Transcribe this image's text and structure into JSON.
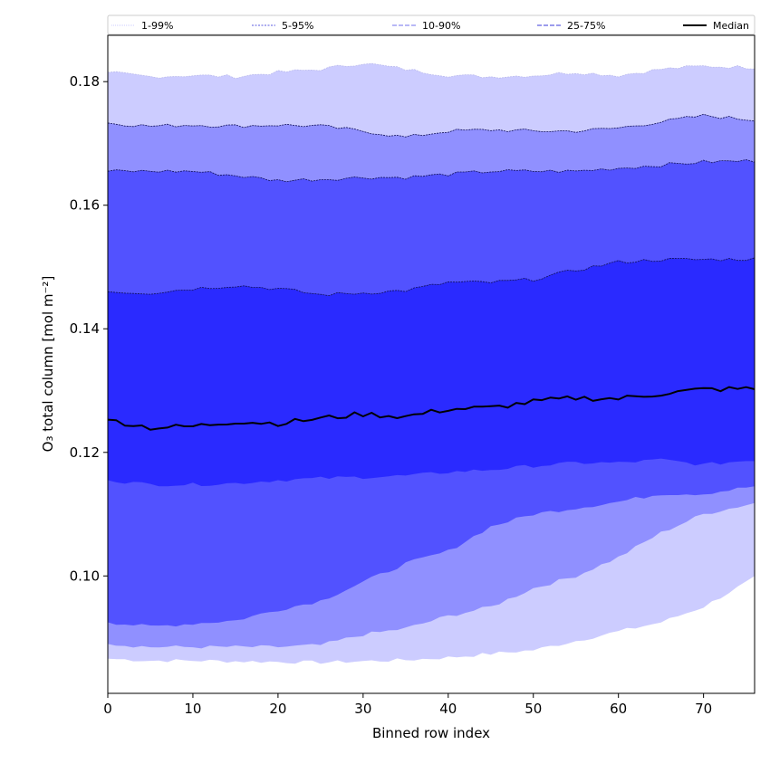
{
  "chart_data": {
    "type": "area",
    "title": "",
    "xlabel": "Binned row index",
    "ylabel": "O₃ total column [mol m⁻²]",
    "xlim": [
      0,
      76
    ],
    "ylim": [
      0.081,
      0.1875
    ],
    "xticks": [
      0,
      10,
      20,
      30,
      40,
      50,
      60,
      70
    ],
    "yticks": [
      0.1,
      0.12,
      0.14,
      0.16,
      0.18
    ],
    "ytick_labels": [
      "0.10",
      "0.12",
      "0.14",
      "0.16",
      "0.18"
    ],
    "grid": false,
    "legend_position": "top (above plot)",
    "x": [
      0,
      5,
      10,
      15,
      20,
      25,
      30,
      35,
      40,
      45,
      50,
      55,
      60,
      65,
      70,
      76
    ],
    "bands": [
      {
        "name": "1-99%",
        "fill": "#ccccff",
        "line_color": "#ccccff",
        "dash": "1 1",
        "lower": [
          0.0866,
          0.0863,
          0.0863,
          0.0862,
          0.0861,
          0.086,
          0.0862,
          0.0864,
          0.0868,
          0.0874,
          0.088,
          0.0895,
          0.091,
          0.0925,
          0.095,
          0.0997
        ],
        "upper": [
          0.1815,
          0.1808,
          0.181,
          0.1808,
          0.1815,
          0.182,
          0.183,
          0.182,
          0.181,
          0.1808,
          0.181,
          0.1815,
          0.181,
          0.182,
          0.1825,
          0.1823
        ]
      },
      {
        "name": "5-95%",
        "fill": "#9090ff",
        "line_color": "#5a5ae0",
        "dash": "2 1.5",
        "lower": [
          0.089,
          0.0885,
          0.0885,
          0.0885,
          0.0885,
          0.0888,
          0.0905,
          0.0915,
          0.0935,
          0.095,
          0.098,
          0.1,
          0.103,
          0.107,
          0.11,
          0.1118
        ],
        "upper": [
          0.1733,
          0.1728,
          0.173,
          0.1728,
          0.173,
          0.1728,
          0.172,
          0.171,
          0.172,
          0.1722,
          0.172,
          0.172,
          0.1725,
          0.1735,
          0.1745,
          0.1738
        ]
      },
      {
        "name": "10-90%",
        "fill": "#5252ff",
        "line_color": "#7070ee",
        "dash": "5 2",
        "lower": [
          0.0925,
          0.0918,
          0.0923,
          0.0928,
          0.0945,
          0.096,
          0.099,
          0.102,
          0.104,
          0.108,
          0.11,
          0.111,
          0.112,
          0.1133,
          0.1133,
          0.1145
        ],
        "upper": [
          0.1655,
          0.1655,
          0.1655,
          0.1648,
          0.164,
          0.1642,
          0.1645,
          0.1645,
          0.165,
          0.1655,
          0.1655,
          0.1655,
          0.166,
          0.1665,
          0.167,
          0.1672
        ]
      },
      {
        "name": "25-75%",
        "fill": "#2a2aff",
        "line_color": "#3a3ad8",
        "dash": "5 2",
        "lower": [
          0.1155,
          0.1148,
          0.1148,
          0.115,
          0.1155,
          0.1158,
          0.116,
          0.1162,
          0.1168,
          0.1172,
          0.1178,
          0.1183,
          0.1183,
          0.1188,
          0.118,
          0.1188
        ],
        "upper": [
          0.146,
          0.1458,
          0.1465,
          0.147,
          0.1465,
          0.1455,
          0.1458,
          0.1462,
          0.1475,
          0.1475,
          0.148,
          0.1495,
          0.1508,
          0.1512,
          0.1512,
          0.1513
        ]
      }
    ],
    "median": {
      "name": "Median",
      "line_color": "#000000",
      "values": [
        0.1253,
        0.124,
        0.1242,
        0.125,
        0.1247,
        0.1255,
        0.1262,
        0.1258,
        0.127,
        0.1272,
        0.1282,
        0.1288,
        0.1287,
        0.1295,
        0.1302,
        0.1303
      ]
    },
    "legend": [
      "1-99%",
      "5-95%",
      "10-90%",
      "25-75%",
      "Median"
    ]
  }
}
